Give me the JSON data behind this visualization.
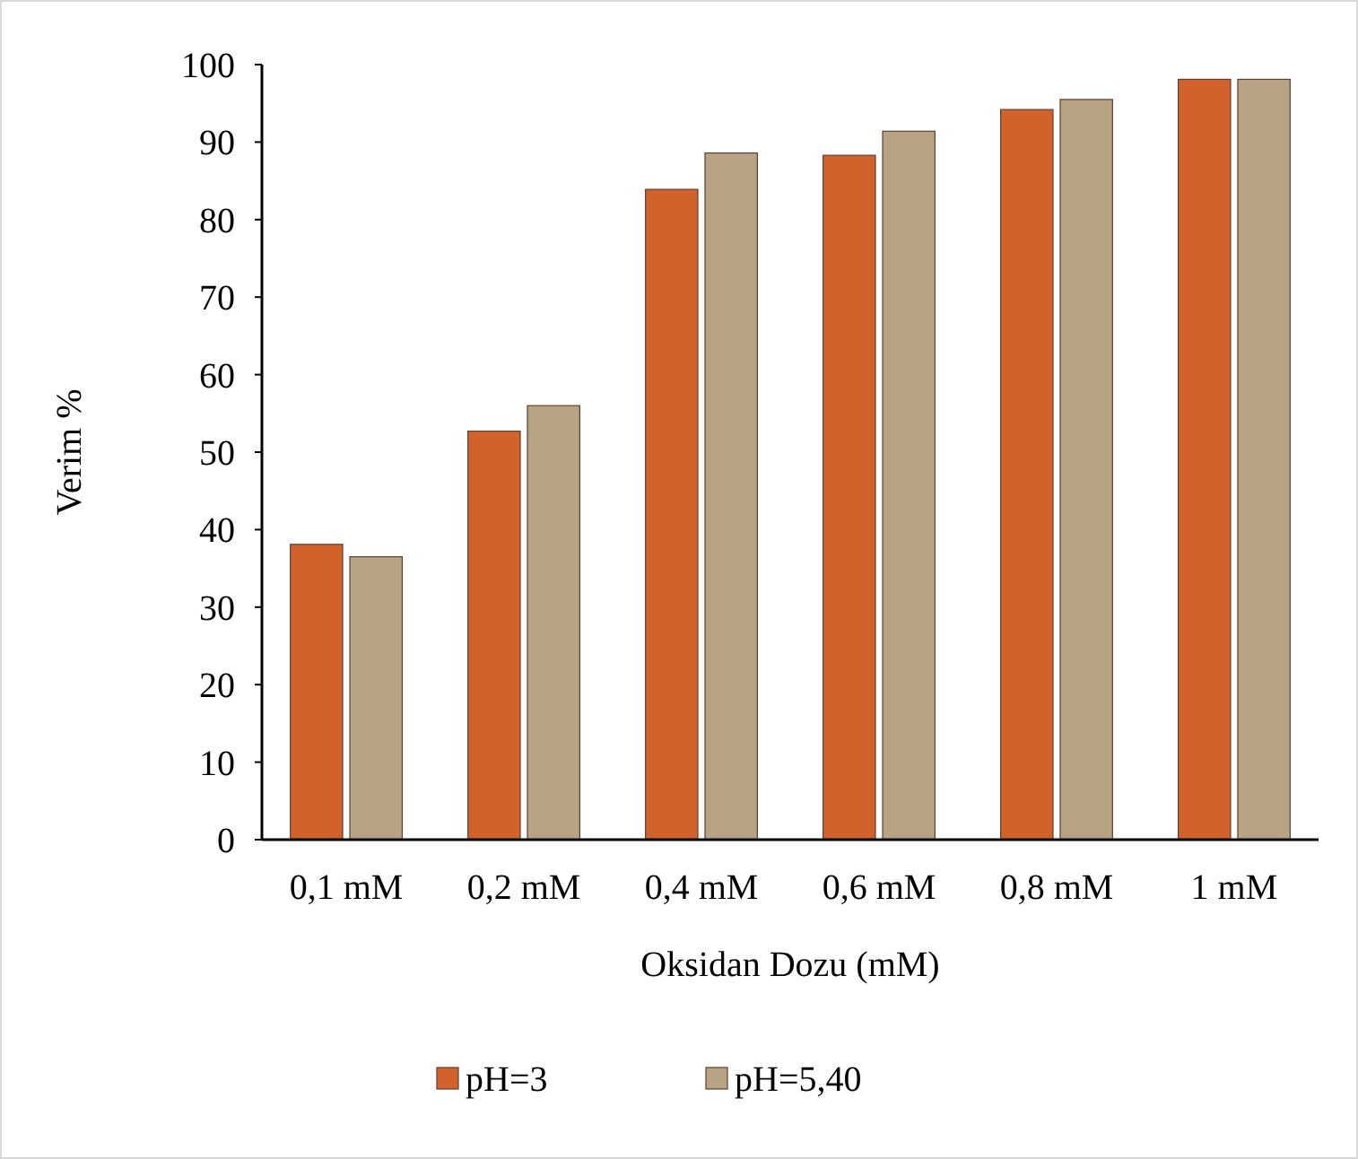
{
  "chart_data": {
    "type": "bar",
    "xlabel": "Oksidan Dozu (mM)",
    "ylabel": "Verim %",
    "categories": [
      "0,1 mM",
      "0,2 mM",
      "0,4 mM",
      "0,6 mM",
      "0,8 mM",
      "1 mM"
    ],
    "series": [
      {
        "name": "pH=3",
        "color": "#d2622c",
        "values": [
          38.1,
          52.7,
          83.9,
          88.3,
          94.2,
          98.1
        ]
      },
      {
        "name": "pH=5,40",
        "color": "#b8a484",
        "values": [
          36.5,
          56.0,
          88.6,
          91.4,
          95.5,
          98.1
        ]
      }
    ],
    "ylim": [
      0,
      100
    ],
    "yticks": [
      0,
      10,
      20,
      30,
      40,
      50,
      60,
      70,
      80,
      90,
      100
    ],
    "grid": false,
    "legend": "bottom"
  }
}
